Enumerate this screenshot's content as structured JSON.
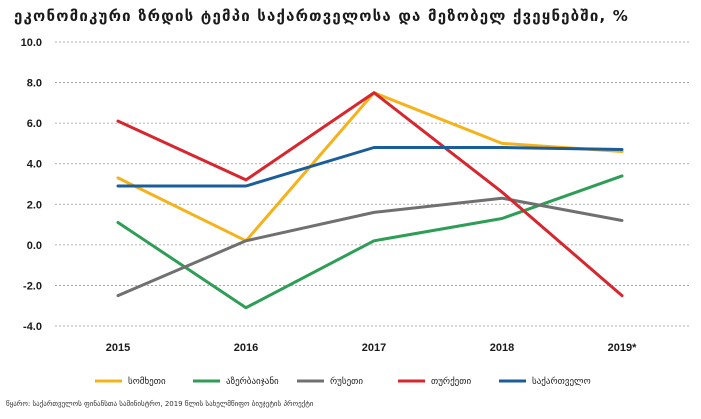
{
  "chart_data": {
    "type": "line",
    "title": "ეკონომიკური ზრდის ტემპი საქართველოსა და მეზობელ ქვეყნებში, %",
    "categories": [
      "2015",
      "2016",
      "2017",
      "2018",
      "2019*"
    ],
    "ylim": [
      -4.0,
      10.0
    ],
    "yticks": [
      "10.0",
      "8.0",
      "6.0",
      "4.0",
      "2.0",
      "0.0",
      "-2.0",
      "-4.0"
    ],
    "ytick_values": [
      10,
      8,
      6,
      4,
      2,
      0,
      -2,
      -4
    ],
    "grid": true,
    "legend_position": "bottom",
    "series": [
      {
        "name": "სომხეთი",
        "color": "#f5b21a",
        "values": [
          3.3,
          0.2,
          7.5,
          5.0,
          4.6
        ]
      },
      {
        "name": "აზერბაიჯანი",
        "color": "#2e9e57",
        "values": [
          1.1,
          -3.1,
          0.2,
          1.3,
          3.4
        ]
      },
      {
        "name": "რუსეთი",
        "color": "#707070",
        "values": [
          -2.5,
          0.2,
          1.6,
          2.3,
          1.2
        ]
      },
      {
        "name": "თურქეთი",
        "color": "#d7262e",
        "values": [
          6.1,
          3.2,
          7.5,
          2.6,
          -2.5
        ]
      },
      {
        "name": "საქართველო",
        "color": "#1b5d9a",
        "values": [
          2.9,
          2.9,
          4.8,
          4.8,
          4.7
        ]
      }
    ]
  },
  "source": "წყარო: საქართველოს ფინანსთა სამინისტრო, 2019 წლის სახელმწიფო ბიუჯეტის პროექტი"
}
